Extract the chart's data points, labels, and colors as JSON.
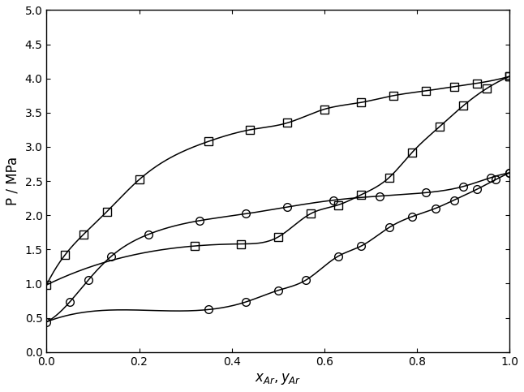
{
  "xlabel": "x_{Ar},y_{Ar}",
  "ylabel": "P / MPa",
  "xlim": [
    0,
    1
  ],
  "ylim": [
    0,
    5
  ],
  "yticks": [
    0,
    0.5,
    1.0,
    1.5,
    2.0,
    2.5,
    3.0,
    3.5,
    4.0,
    4.5,
    5.0
  ],
  "xticks": [
    0,
    0.2,
    0.4,
    0.6,
    0.8,
    1.0
  ],
  "sq_bubble_x": [
    0.0,
    0.04,
    0.08,
    0.13,
    0.2,
    0.35,
    0.44,
    0.52,
    0.6,
    0.68,
    0.75,
    0.82,
    0.88,
    0.93,
    1.0
  ],
  "sq_bubble_P": [
    0.98,
    1.42,
    1.72,
    2.05,
    2.52,
    3.08,
    3.25,
    3.35,
    3.55,
    3.65,
    3.75,
    3.82,
    3.88,
    3.93,
    4.03
  ],
  "sq_dew_x": [
    0.0,
    0.32,
    0.42,
    0.5,
    0.57,
    0.63,
    0.68,
    0.74,
    0.79,
    0.85,
    0.9,
    0.95,
    1.0
  ],
  "sq_dew_P": [
    0.98,
    1.55,
    1.58,
    1.68,
    2.02,
    2.15,
    2.3,
    2.55,
    2.92,
    3.3,
    3.6,
    3.85,
    4.03
  ],
  "ci_bubble_x": [
    0.0,
    0.05,
    0.09,
    0.14,
    0.22,
    0.33,
    0.43,
    0.52,
    0.62,
    0.72,
    0.82,
    0.9,
    0.96,
    1.0
  ],
  "ci_bubble_P": [
    0.44,
    0.73,
    1.05,
    1.4,
    1.72,
    1.92,
    2.02,
    2.12,
    2.22,
    2.28,
    2.33,
    2.42,
    2.55,
    2.62
  ],
  "ci_dew_x": [
    0.0,
    0.35,
    0.43,
    0.5,
    0.56,
    0.63,
    0.68,
    0.74,
    0.79,
    0.84,
    0.88,
    0.93,
    0.97,
    1.0
  ],
  "ci_dew_P": [
    0.44,
    0.62,
    0.73,
    0.9,
    1.05,
    1.4,
    1.55,
    1.82,
    1.98,
    2.1,
    2.22,
    2.38,
    2.52,
    2.62
  ],
  "sq_bubble_pts_x": [
    0.0,
    0.04,
    0.08,
    0.13,
    0.2,
    0.35,
    0.44,
    0.52,
    0.6,
    0.68,
    0.75,
    0.82,
    0.88,
    0.93,
    1.0
  ],
  "sq_bubble_pts_P": [
    0.98,
    1.42,
    1.72,
    2.05,
    2.52,
    3.08,
    3.25,
    3.35,
    3.55,
    3.65,
    3.75,
    3.82,
    3.88,
    3.93,
    4.03
  ],
  "sq_dew_pts_x": [
    0.32,
    0.42,
    0.5,
    0.57,
    0.63,
    0.68,
    0.74,
    0.79,
    0.85,
    0.9,
    0.95,
    1.0
  ],
  "sq_dew_pts_P": [
    1.55,
    1.58,
    1.68,
    2.02,
    2.15,
    2.3,
    2.55,
    2.92,
    3.3,
    3.6,
    3.85,
    4.03
  ],
  "ci_bubble_pts_x": [
    0.0,
    0.05,
    0.09,
    0.14,
    0.22,
    0.33,
    0.43,
    0.52,
    0.62,
    0.72,
    0.82,
    0.9,
    0.96,
    1.0
  ],
  "ci_bubble_pts_P": [
    0.44,
    0.73,
    1.05,
    1.4,
    1.72,
    1.92,
    2.02,
    2.12,
    2.22,
    2.28,
    2.33,
    2.42,
    2.55,
    2.62
  ],
  "ci_dew_pts_x": [
    0.35,
    0.43,
    0.5,
    0.56,
    0.63,
    0.68,
    0.74,
    0.79,
    0.84,
    0.88,
    0.93,
    0.97,
    1.0
  ],
  "ci_dew_pts_P": [
    0.62,
    0.73,
    0.9,
    1.05,
    1.4,
    1.55,
    1.82,
    1.98,
    2.1,
    2.22,
    2.38,
    2.52,
    2.62
  ],
  "line_color": "#000000",
  "background_color": "#ffffff",
  "marker_size": 7,
  "line_width": 1.1
}
